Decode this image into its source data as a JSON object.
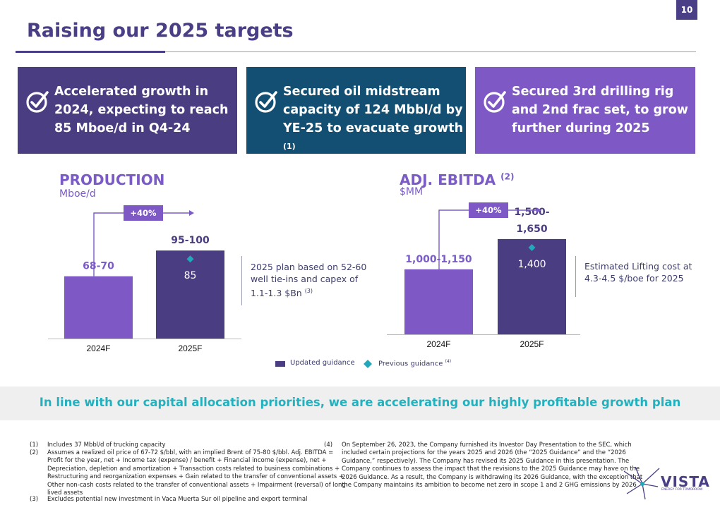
{
  "page_number": "10",
  "title": "Raising our 2025 targets",
  "cards": [
    {
      "text": "Accelerated growth in\n2024, expecting to reach\n85 Mboe/d in Q4-24",
      "color": "#4b3d82"
    },
    {
      "text": "Secured oil midstream\ncapacity of 124 Mbbl/d by\nYE-25 to evacuate growth",
      "sup": "(1)",
      "color": "#124f72"
    },
    {
      "text": "Secured 3rd drilling rig\nand 2nd frac set, to grow\nfurther during 2025",
      "color": "#7e59c5"
    }
  ],
  "production": {
    "title": "PRODUCTION",
    "unit": "Mboe/d",
    "growth_badge": "+40%",
    "note": "2025 plan based on 52-60\nwell tie-ins and capex of\n1.1-1.3 $Bn",
    "note_sup": "(3)"
  },
  "ebitda": {
    "title": "ADJ. EBITDA",
    "title_sup": "(2)",
    "unit": "$MM",
    "growth_badge": "+40%",
    "note": "Estimated Lifting cost at\n4.3-4.5 $/boe for 2025"
  },
  "legend": {
    "updated": "Updated guidance",
    "previous": "Previous guidance",
    "previous_sup": "(4)"
  },
  "tagline": "In line with our capital allocation priorities, we are accelerating our highly profitable growth plan",
  "footnotes_left": [
    {
      "num": "(1)",
      "text": "Includes 37 Mbbl/d of trucking capacity"
    },
    {
      "num": "(2)",
      "text": "Assumes a realized oil price of 67-72 $/bbl, with an implied Brent of 75-80 $/bbl. Adj. EBITDA =\nProfit for the year, net + Income tax (expense) / benefit + Financial income (expense), net +\nDepreciation, depletion and amortization + Transaction costs related to business combinations +\nRestructuring and reorganization expenses + Gain related to the transfer of conventional assets +\nOther non-cash costs related to the transfer of conventional assets + Impairment (reversal) of long-\nlived assets"
    },
    {
      "num": "(3)",
      "text": "Excludes potential new investment in Vaca Muerta Sur oil pipeline and export terminal"
    }
  ],
  "footnotes_right": [
    {
      "num": "(4)",
      "text": "On September 26, 2023,  the Company furnished its Investor Day Presentation to the SEC, which\nincluded certain projections for the years 2025 and 2026 (the “2025 Guidance” and the “2026\nGuidance,” respectively). The Company has revised its 2025 Guidance in this presentation.  The\nCompany continues to assess the impact that the revisions to the 2025 Guidance may have on the\n2026 Guidance. As a result, the Company is withdrawing its 2026 Guidance, with the exception that\nthe Company maintains its ambition to become net zero in scope 1 and 2 GHG emissions by 2026"
    }
  ],
  "logo": {
    "name": "VISTA",
    "tagline": "ENERGY FOR TOMORROW"
  },
  "colors": {
    "bar_2024": "#7e59c5",
    "bar_2025": "#4b3d82",
    "previous_marker": "#22a8b8",
    "label_2024": "#7b5bc6",
    "label_2025": "#4b3d82",
    "tagline": "#22b1bf"
  },
  "chart_data": [
    {
      "type": "bar",
      "title": "PRODUCTION",
      "ylabel": "Mboe/d",
      "categories": [
        "2024F",
        "2025F"
      ],
      "values": [
        69,
        97.5
      ],
      "value_labels": [
        "68-70",
        "95-100"
      ],
      "previous_guidance": [
        null,
        85
      ],
      "previous_labels": [
        "",
        "85"
      ],
      "ylim": [
        0,
        100
      ]
    },
    {
      "type": "bar",
      "title": "ADJ. EBITDA",
      "ylabel": "$MM",
      "categories": [
        "2024F",
        "2025F"
      ],
      "values": [
        1075,
        1575
      ],
      "value_labels": [
        "1,000-1,150",
        "1,500-\n1,650"
      ],
      "previous_guidance": [
        null,
        1400
      ],
      "previous_labels": [
        "",
        "1,400"
      ],
      "ylim": [
        0,
        1575
      ]
    }
  ]
}
